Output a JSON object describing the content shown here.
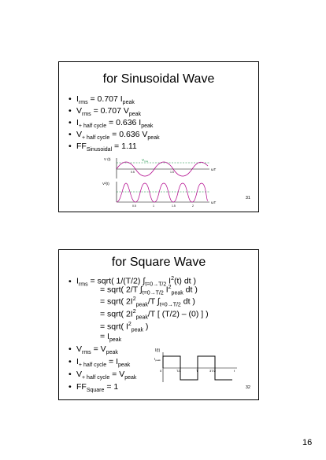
{
  "slide1": {
    "title": "for Sinusoidal Wave",
    "bullets": [
      {
        "a": "I",
        "a_sub": "rms",
        "b": " = 0.707 I",
        "b_sub": "peak"
      },
      {
        "a": "V",
        "a_sub": "rms",
        "b": " = 0.707 V",
        "b_sub": "peak"
      },
      {
        "a": "I",
        "a_sub": "+ half cycle",
        "b": " = 0.636 I",
        "b_sub": "peak"
      },
      {
        "a": "V",
        "a_sub": "+ half cycle",
        "b": " = 0.636 V",
        "b_sub": "peak"
      },
      {
        "a": "FF",
        "a_sub": "Sinusoidal",
        "b": " = 1.11",
        "b_sub": ""
      }
    ],
    "graph": {
      "top_ylabel": "V (t)",
      "top_rms": "V",
      "top_rms_sub": "rms",
      "top_xlabel": "ωT",
      "bottom_ylabel": "V²(t)",
      "bottom_xlabel": "ωT",
      "ticks": [
        "0.5",
        "1",
        "1.5",
        "2"
      ]
    },
    "page": "31"
  },
  "slide2": {
    "title": "for Square Wave",
    "b1": {
      "a": "I",
      "a_sub": "rms",
      "b": " = sqrt( 1/(T/2) ∫",
      "int_sub": "t=0→T/2",
      "c": " I",
      "c_sup": "2",
      "d": "(t) dt )"
    },
    "lines": [
      {
        "a": "= sqrt( 2/T ∫",
        "a_sub": "t=0→T/2",
        "b": " I",
        "b_sup": "2",
        "b_sub": "peak",
        "c": " dt )"
      },
      {
        "a": "= sqrt( 2I",
        "a_sup": "2",
        "a_sub": "peak",
        "b": "/T ∫",
        "b_sub": "t=0→T/2",
        "c": " dt )"
      },
      {
        "a": "= sqrt( 2I",
        "a_sup": "2",
        "a_sub": "peak",
        "b": "/T [ (T/2) – (0) ] )"
      },
      {
        "a": "= sqrt( I",
        "a_sup": "2",
        "a_sub": "peak",
        "b": " )"
      },
      {
        "a": "= I",
        "a_sub": "peak"
      }
    ],
    "bullets2": [
      {
        "a": "V",
        "a_sub": "rms",
        "b": " = V",
        "b_sub": "peak"
      },
      {
        "a": "I",
        "a_sub": "+ half cycle",
        "b": " = I",
        "b_sub": "peak"
      },
      {
        "a": "V",
        "a_sub": "+ half cycle",
        "b": " = V",
        "b_sub": "peak"
      },
      {
        "a": "FF",
        "a_sub": "Square",
        "b": " = 1",
        "b_sub": ""
      }
    ],
    "graph": {
      "ylabel": "I(t)",
      "ipeak": "I",
      "ipeak_sub": "peak",
      "xlabels": [
        "0",
        "T/2",
        "T",
        "3T/2",
        "t"
      ]
    },
    "page": "32"
  },
  "page_number": "16"
}
